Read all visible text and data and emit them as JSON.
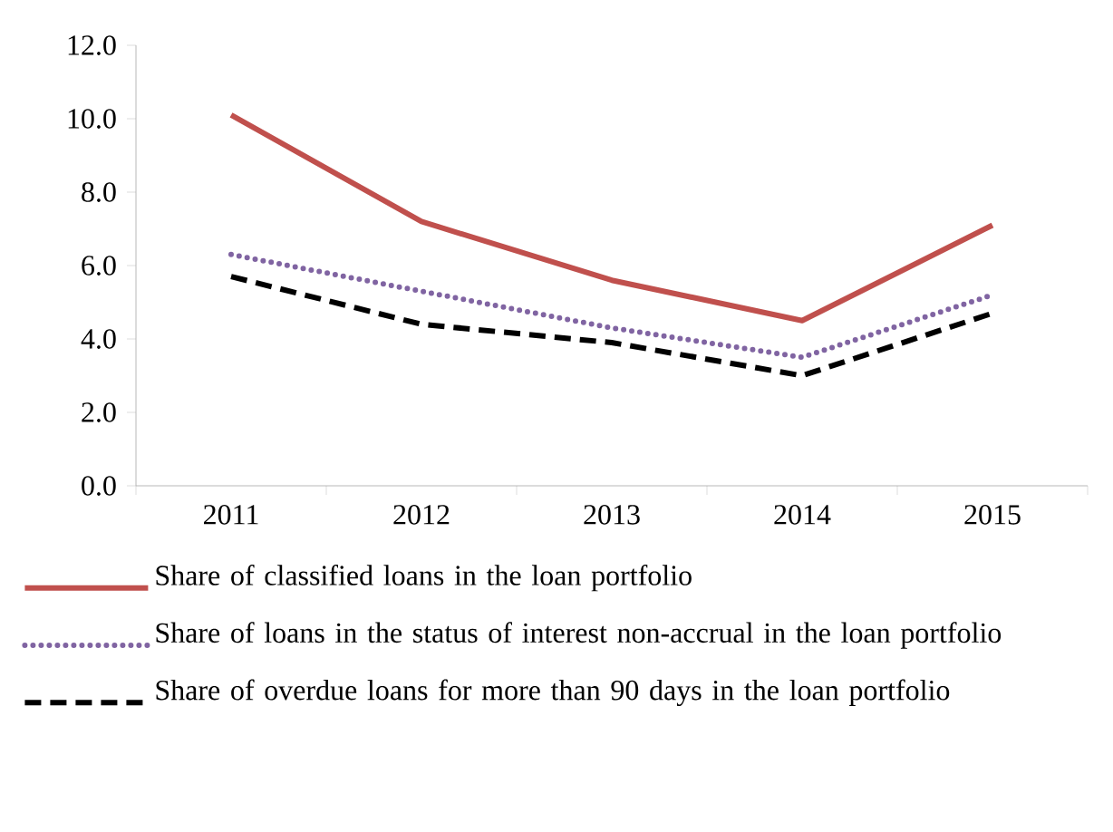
{
  "chart_data": {
    "type": "line",
    "categories": [
      "2011",
      "2012",
      "2013",
      "2014",
      "2015"
    ],
    "series": [
      {
        "name": "Share of classified loans in the loan portfolio",
        "color": "#c0504d",
        "line_style": "solid",
        "values": [
          10.1,
          7.2,
          5.6,
          4.5,
          7.1
        ]
      },
      {
        "name": "Share of loans in the status of interest non-accrual in the loan portfolio",
        "color": "#8064a2",
        "line_style": "dotted",
        "values": [
          6.3,
          5.3,
          4.3,
          3.5,
          5.2
        ]
      },
      {
        "name": "Share of overdue loans for more than 90 days in the loan portfolio",
        "color": "#000000",
        "line_style": "dashed",
        "values": [
          5.7,
          4.4,
          3.9,
          3.0,
          4.7
        ]
      }
    ],
    "ylim": [
      0,
      12
    ],
    "yticks": [
      {
        "value": 0,
        "label": "0.0"
      },
      {
        "value": 2,
        "label": "2.0"
      },
      {
        "value": 4,
        "label": "4.0"
      },
      {
        "value": 6,
        "label": "6.0"
      },
      {
        "value": 8,
        "label": "8.0"
      },
      {
        "value": 10,
        "label": "10.0"
      },
      {
        "value": 12,
        "label": "12.0"
      }
    ],
    "grid": false,
    "legend": "bottom",
    "marker": "none"
  }
}
